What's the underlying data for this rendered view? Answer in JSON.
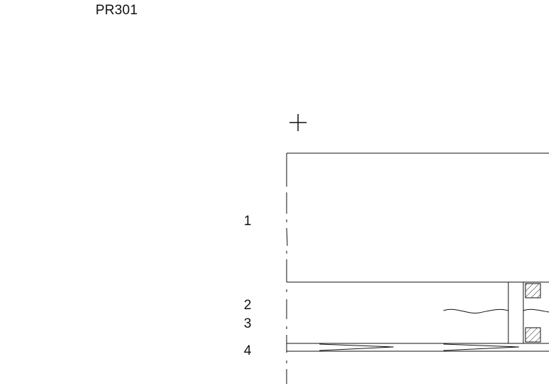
{
  "drawing": {
    "label": "PR301",
    "callouts": [
      "1",
      "2",
      "3",
      "4"
    ]
  },
  "colors": {
    "line": "#111111",
    "background": "#ffffff"
  },
  "icons": {
    "origin_marker": "plus-crosshair"
  }
}
